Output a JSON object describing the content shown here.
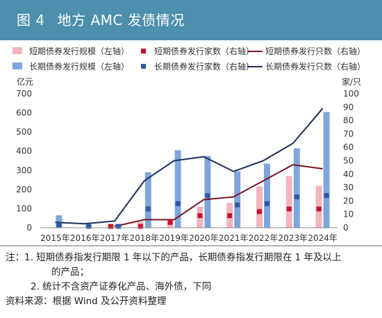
{
  "figure": {
    "label": "图 4",
    "title": "地方 AMC 发债情况"
  },
  "chart_data": {
    "type": "bar",
    "categories": [
      "2015年",
      "2016年",
      "2017年",
      "2018年",
      "2019年",
      "2020年",
      "2021年",
      "2022年",
      "2023年",
      "2024年"
    ],
    "left_axis": {
      "unit": "亿元",
      "range": [
        0,
        700
      ],
      "ticks": [
        "0",
        "100",
        "200",
        "300",
        "400",
        "500",
        "600",
        "700"
      ]
    },
    "right_axis": {
      "unit": "家/只",
      "range": [
        0,
        100
      ],
      "ticks": [
        "0",
        "10",
        "20",
        "30",
        "40",
        "50",
        "60",
        "70",
        "80",
        "90",
        "100"
      ]
    },
    "grid": false,
    "legend_position": "top",
    "series": [
      {
        "name": "短期债券发行规模（左轴）",
        "kind": "bar",
        "axis": "left",
        "color": "#f2b5c0",
        "values": [
          0,
          0,
          15,
          30,
          35,
          110,
          130,
          215,
          270,
          220
        ]
      },
      {
        "name": "长期债券发行规模（左轴）",
        "kind": "bar",
        "axis": "left",
        "color": "#7fa6db",
        "values": [
          65,
          15,
          20,
          290,
          405,
          375,
          295,
          335,
          415,
          605
        ]
      },
      {
        "name": "短期债券发行家数（右轴）",
        "kind": "marker",
        "axis": "right",
        "color": "#c8102e",
        "values": [
          null,
          null,
          1,
          1,
          4,
          9,
          9,
          12,
          14,
          14
        ]
      },
      {
        "name": "长期债券发行家数（右轴）",
        "kind": "marker",
        "axis": "right",
        "color": "#2e5aa8",
        "values": [
          2,
          1,
          1,
          14,
          18,
          24,
          17,
          18,
          23,
          24
        ]
      },
      {
        "name": "短期债券发行只数（右轴）",
        "kind": "line",
        "axis": "right",
        "color": "#7a1426",
        "values": [
          null,
          null,
          1,
          6,
          6,
          21,
          23,
          35,
          47,
          44
        ]
      },
      {
        "name": "长期债券发行只数（右轴）",
        "kind": "line",
        "axis": "right",
        "color": "#1f2e5c",
        "values": [
          4,
          3,
          5,
          35,
          50,
          53,
          42,
          50,
          63,
          89
        ]
      }
    ]
  },
  "notes": {
    "prefix": "注：",
    "item1_a": "1. 短期债券指发行期限 1 年以下的产品，长期债券指发行期限在 1 年及以上",
    "item1_b": "的产品；",
    "item2": "2. 统计不含资产证券化产品、海外债，下同",
    "source": "资料来源：根据 Wind 及公开资料整理"
  },
  "colors": {
    "title_bar": "#4d8fad",
    "axis": "#888888"
  }
}
